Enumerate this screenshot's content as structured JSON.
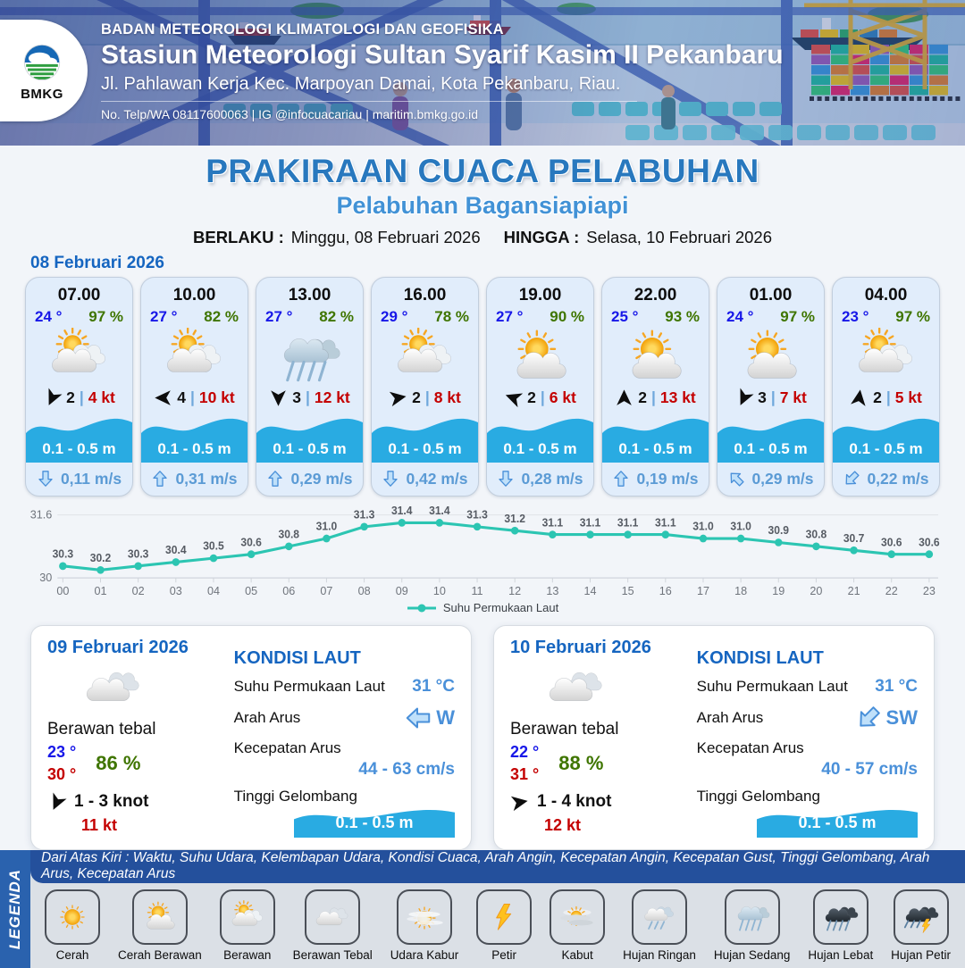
{
  "header": {
    "logo_label": "BMKG",
    "org_line": "BADAN METEOROLOGI KLIMATOLOGI DAN GEOFISIKA",
    "station": "Stasiun Meteorologi Sultan Syarif Kasim II Pekanbaru",
    "address": "Jl. Pahlawan Kerja Kec. Marpoyan Damai, Kota Pekanbaru, Riau.",
    "contact": "No. Telp/WA 08117600063 | IG @infocuacariau | maritim.bmkg.go.id"
  },
  "title": {
    "main": "PRAKIRAAN CUACA PELABUHAN",
    "subtitle": "Pelabuhan Bagansiapiapi",
    "berlaku_label": "BERLAKU :",
    "berlaku_value": "Minggu, 08 Februari 2026",
    "hingga_label": "HINGGA :",
    "hingga_value": "Selasa, 10 Februari 2026"
  },
  "forecast": {
    "date_label": "08 Februari 2026",
    "separator": "|",
    "cards": [
      {
        "time": "07.00",
        "temp": "24 °",
        "humidity": "97 %",
        "icon": "berawan",
        "wind_speed": "2",
        "gust": "4 kt",
        "wind_deg": 205,
        "wave": "0.1 - 0.5 m",
        "current": "0,11 m/s",
        "current_deg": 180
      },
      {
        "time": "10.00",
        "temp": "27 °",
        "humidity": "82 %",
        "icon": "berawan",
        "wind_speed": "4",
        "gust": "10 kt",
        "wind_deg": 270,
        "wave": "0.1 - 0.5 m",
        "current": "0,31 m/s",
        "current_deg": 0
      },
      {
        "time": "13.00",
        "temp": "27 °",
        "humidity": "82 %",
        "icon": "hujan-sedang",
        "wind_speed": "3",
        "gust": "12 kt",
        "wind_deg": 180,
        "wave": "0.1 - 0.5 m",
        "current": "0,29 m/s",
        "current_deg": 0
      },
      {
        "time": "16.00",
        "temp": "29 °",
        "humidity": "78 %",
        "icon": "berawan",
        "wind_speed": "2",
        "gust": "8 kt",
        "wind_deg": 80,
        "wave": "0.1 - 0.5 m",
        "current": "0,42 m/s",
        "current_deg": 180
      },
      {
        "time": "19.00",
        "temp": "27 °",
        "humidity": "90 %",
        "icon": "cerah-berawan",
        "wind_speed": "2",
        "gust": "6 kt",
        "wind_deg": 290,
        "wave": "0.1 - 0.5 m",
        "current": "0,28 m/s",
        "current_deg": 180
      },
      {
        "time": "22.00",
        "temp": "25 °",
        "humidity": "93 %",
        "icon": "cerah-berawan",
        "wind_speed": "2",
        "gust": "13 kt",
        "wind_deg": 0,
        "wave": "0.1 - 0.5 m",
        "current": "0,19 m/s",
        "current_deg": 0
      },
      {
        "time": "01.00",
        "temp": "24 °",
        "humidity": "97 %",
        "icon": "cerah-berawan",
        "wind_speed": "3",
        "gust": "7 kt",
        "wind_deg": 205,
        "wave": "0.1 - 0.5 m",
        "current": "0,29 m/s",
        "current_deg": 315
      },
      {
        "time": "04.00",
        "temp": "23 °",
        "humidity": "97 %",
        "icon": "berawan",
        "wind_speed": "2",
        "gust": "5 kt",
        "wind_deg": 8,
        "wave": "0.1 - 0.5 m",
        "current": "0,22 m/s",
        "current_deg": 225
      }
    ]
  },
  "chart_data": {
    "type": "line",
    "x": [
      "00",
      "01",
      "02",
      "03",
      "04",
      "05",
      "06",
      "07",
      "08",
      "09",
      "10",
      "11",
      "12",
      "13",
      "14",
      "15",
      "16",
      "17",
      "18",
      "19",
      "20",
      "21",
      "22",
      "23"
    ],
    "series": [
      {
        "name": "Suhu Permukaan Laut",
        "values": [
          30.3,
          30.2,
          30.3,
          30.4,
          30.5,
          30.6,
          30.8,
          31.0,
          31.3,
          31.4,
          31.4,
          31.3,
          31.2,
          31.1,
          31.1,
          31.1,
          31.1,
          31.0,
          31.0,
          30.9,
          30.8,
          30.7,
          30.6,
          30.6
        ]
      }
    ],
    "ylim": [
      30,
      31.6
    ],
    "yticks": [
      {
        "v": 30,
        "label": "30"
      },
      {
        "v": 31.6,
        "label": "31.6"
      }
    ],
    "line_color": "#2cc5b2",
    "grid": true,
    "legend_position": "bottom"
  },
  "daily": [
    {
      "date": "09 Februari 2026",
      "icon": "berawan-tebal",
      "condition": "Berawan tebal",
      "temp_min": "23 °",
      "temp_max": "30 °",
      "humidity": "86 %",
      "wind_deg": 205,
      "wind_range": "1 - 3 knot",
      "gust": "11 kt",
      "sea": {
        "title": "KONDISI LAUT",
        "sst_label": "Suhu Permukaan Laut",
        "sst": "31 °C",
        "current_dir_label": "Arah Arus",
        "current_dir": "W",
        "current_dir_deg": 270,
        "current_speed_label": "Kecepatan Arus",
        "current_speed": "44 - 63 cm/s",
        "wave_label": "Tinggi Gelombang",
        "wave": "0.1 - 0.5 m"
      }
    },
    {
      "date": "10 Februari 2026",
      "icon": "berawan-tebal",
      "condition": "Berawan tebal",
      "temp_min": "22 °",
      "temp_max": "31 °",
      "humidity": "88 %",
      "wind_deg": 80,
      "wind_range": "1 - 4 knot",
      "gust": "12 kt",
      "sea": {
        "title": "KONDISI LAUT",
        "sst_label": "Suhu Permukaan Laut",
        "sst": "31 °C",
        "current_dir_label": "Arah Arus",
        "current_dir": "SW",
        "current_dir_deg": 225,
        "current_speed_label": "Kecepatan Arus",
        "current_speed": "40 - 57 cm/s",
        "wave_label": "Tinggi Gelombang",
        "wave": "0.1 - 0.5 m"
      }
    }
  ],
  "legend": {
    "ribbon": "LEGENDA",
    "note": "Dari Atas Kiri : Waktu, Suhu Udara, Kelembapan Udara, Kondisi Cuaca, Arah Angin, Kecepatan Angin, Kecepatan Gust, Tinggi Gelombang, Arah Arus, Kecepatan Arus",
    "items": [
      {
        "icon": "cerah",
        "label": "Cerah"
      },
      {
        "icon": "cerah-berawan",
        "label": "Cerah Berawan"
      },
      {
        "icon": "berawan",
        "label": "Berawan"
      },
      {
        "icon": "berawan-tebal",
        "label": "Berawan Tebal"
      },
      {
        "icon": "udara-kabur",
        "label": "Udara Kabur"
      },
      {
        "icon": "petir",
        "label": "Petir"
      },
      {
        "icon": "kabut",
        "label": "Kabut"
      },
      {
        "icon": "hujan-ringan",
        "label": "Hujan Ringan"
      },
      {
        "icon": "hujan-sedang",
        "label": "Hujan Sedang"
      },
      {
        "icon": "hujan-lebat",
        "label": "Hujan Lebat"
      },
      {
        "icon": "hujan-petir",
        "label": "Hujan Petir"
      }
    ]
  },
  "colors": {
    "title_blue": "#2878be",
    "subtitle_blue": "#4292d6",
    "date_blue": "#1565c0",
    "temp_blue": "#1717e8",
    "humidity_green": "#3f7500",
    "gust_red": "#c40000",
    "wave_blue": "#29abe2",
    "current_blue": "#5b9bd5",
    "chart_teal": "#2cc5b2",
    "legend_bar_blue": "#24509c"
  }
}
